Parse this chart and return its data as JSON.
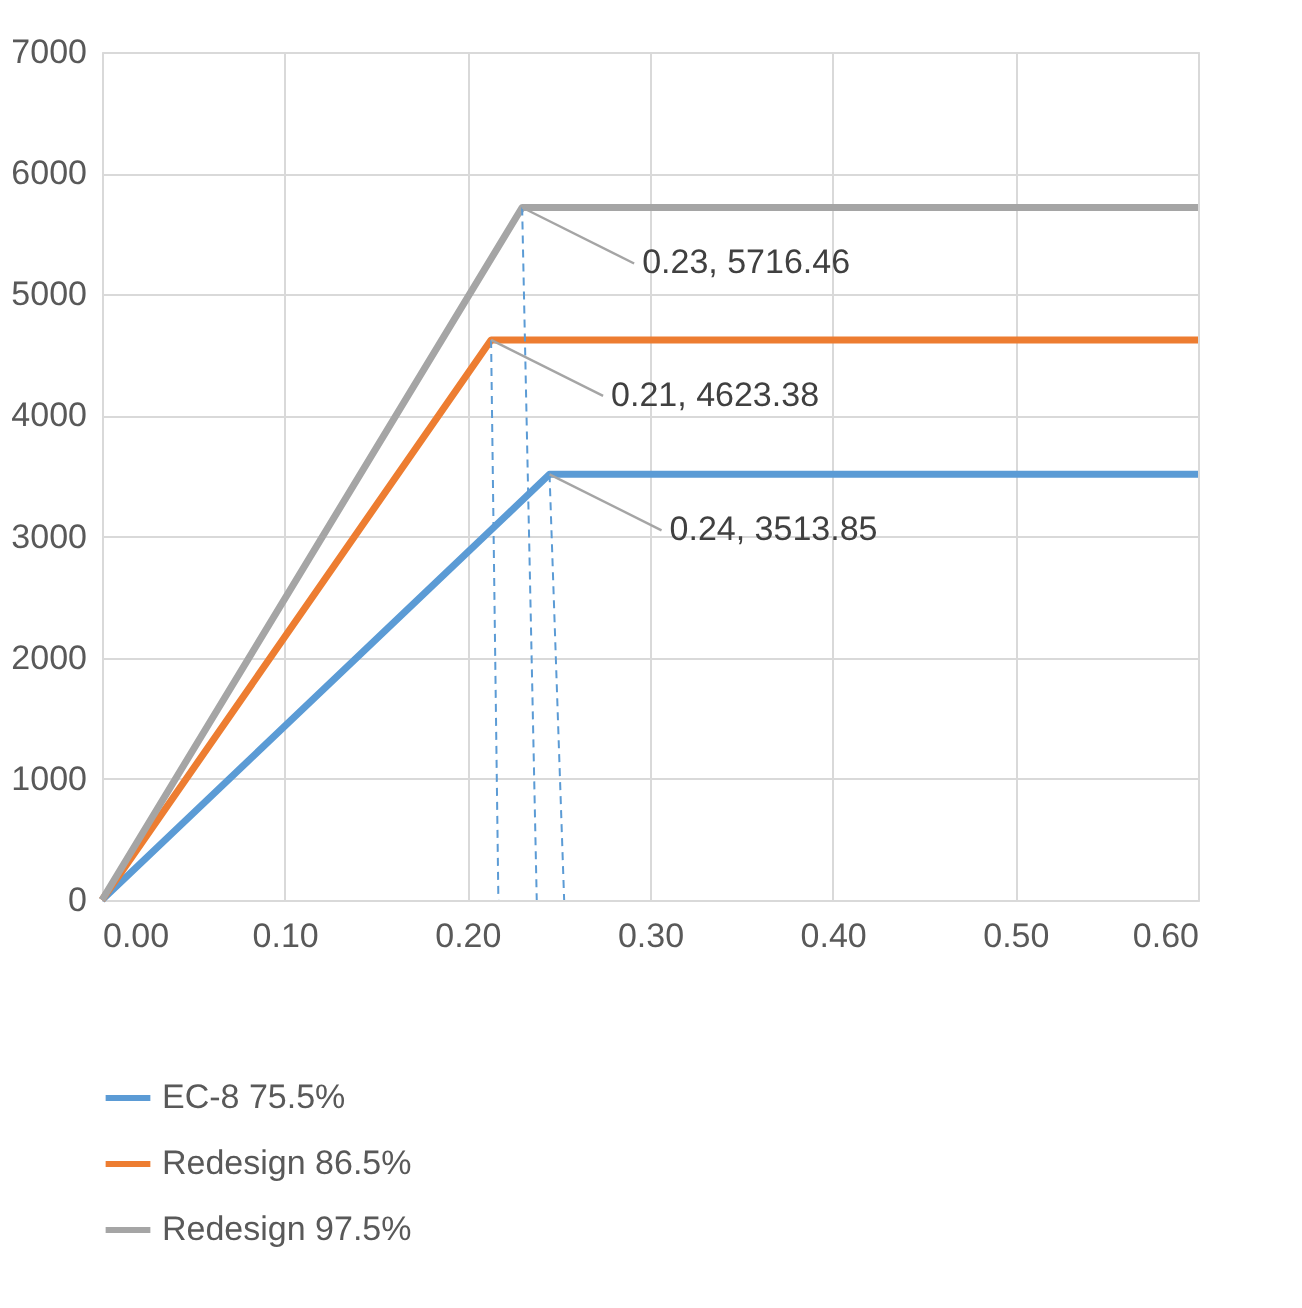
{
  "chart_data": {
    "type": "line",
    "legend": "bottom",
    "grid": true,
    "line_style": "solid",
    "marker": "none",
    "xlim": [
      0,
      0.6
    ],
    "ylim": [
      0,
      7000
    ],
    "xticks": [
      {
        "value": 0,
        "label": "0.00"
      },
      {
        "value": 0.1,
        "label": "0.10"
      },
      {
        "value": 0.2,
        "label": "0.20"
      },
      {
        "value": 0.3,
        "label": "0.30"
      },
      {
        "value": 0.4,
        "label": "0.40"
      },
      {
        "value": 0.5,
        "label": "0.50"
      },
      {
        "value": 0.6,
        "label": "0.60"
      }
    ],
    "yticks": [
      0,
      1000,
      2000,
      3000,
      4000,
      5000,
      6000,
      7000
    ],
    "series": [
      {
        "name": "EC-8 75.5%",
        "color": "#5b9bd5",
        "x": [
          0,
          0.245,
          0.6
        ],
        "values": [
          0,
          3513.85,
          3513.85
        ]
      },
      {
        "name": "Redesign 86.5%",
        "color": "#ed7d31",
        "x": [
          0,
          0.213,
          0.6
        ],
        "values": [
          0,
          4623.38,
          4623.38
        ]
      },
      {
        "name": "Redesign 97.5%",
        "color": "#a5a5a5",
        "x": [
          0,
          0.23,
          0.6
        ],
        "values": [
          0,
          5716.46,
          5716.46
        ]
      },
      {
        "color": "#5b9bd5",
        "line_style": "dashed",
        "x": [
          0.213,
          0.217
        ],
        "values": [
          4623.38,
          0
        ]
      },
      {
        "color": "#5b9bd5",
        "line_style": "dashed",
        "x": [
          0.23,
          0.238
        ],
        "values": [
          5716.46,
          0
        ]
      },
      {
        "color": "#5b9bd5",
        "line_style": "dashed",
        "x": [
          0.245,
          0.253
        ],
        "values": [
          3513.85,
          0
        ]
      }
    ],
    "annotations": [
      {
        "text": "0.23, 5716.46",
        "x": 0.23,
        "y": 5716.46
      },
      {
        "text": "0.21, 4623.38",
        "x": 0.213,
        "y": 4623.38
      },
      {
        "text": "0.24, 3513.85",
        "x": 0.245,
        "y": 3513.85
      }
    ]
  }
}
